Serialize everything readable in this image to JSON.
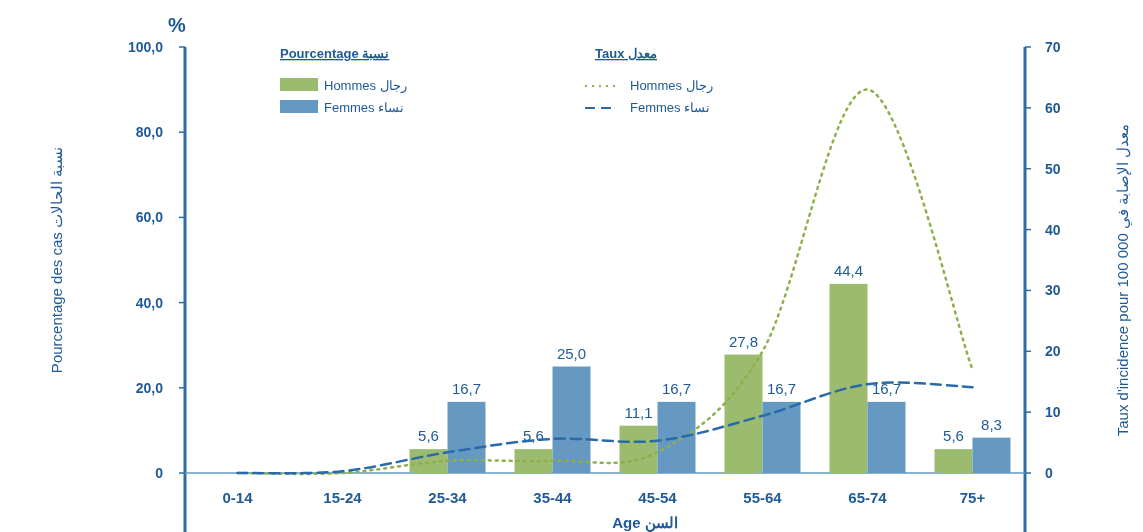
{
  "chart_data": {
    "type": "bar",
    "categories": [
      "0-14",
      "15-24",
      "25-34",
      "35-44",
      "45-54",
      "55-64",
      "65-74",
      "75+"
    ],
    "series": [
      {
        "name": "Hommes  رجال",
        "color": "#9bbb6e",
        "values": [
          0,
          0,
          5.6,
          5.6,
          11.1,
          27.8,
          44.4,
          5.6
        ],
        "value_labels": [
          null,
          null,
          "5,6",
          "5,6",
          "11,1",
          "27,8",
          "44,4",
          "5,6"
        ]
      },
      {
        "name": "Femmes  نساء",
        "color": "#6699c2",
        "values": [
          0,
          0,
          16.7,
          25.0,
          16.7,
          16.7,
          16.7,
          8.3
        ],
        "value_labels": [
          null,
          null,
          "16,7",
          "25,0",
          "16,7",
          "16,7",
          "16,7",
          "8,3"
        ]
      },
      {
        "name": "Hommes  رجال",
        "type": "line",
        "axis": "y2",
        "color": "#8db04a",
        "line_style": "dotted",
        "values": [
          0,
          0,
          2.0,
          2.0,
          3.4,
          20,
          63,
          17
        ]
      },
      {
        "name": "Femmes  نساء",
        "type": "line",
        "axis": "y2",
        "color": "#2a6aa8",
        "line_style": "dashed",
        "values": [
          0,
          0.3,
          3.4,
          5.6,
          5.3,
          9.4,
          14.6,
          14.1
        ]
      }
    ],
    "xlabel": "Age  السن",
    "ylabel": "Pourcentage des cas  نسبة الحالات",
    "y2label": "Taux d'incidence pour 100 000  معدل الإصابة في",
    "ylim": [
      0,
      100
    ],
    "yticks": [
      {
        "value": 0,
        "label": "0"
      },
      {
        "value": 20,
        "label": "20,0"
      },
      {
        "value": 40,
        "label": "40,0"
      },
      {
        "value": 60,
        "label": "60,0"
      },
      {
        "value": 80,
        "label": "80,0"
      },
      {
        "value": 100,
        "label": "100,0"
      }
    ],
    "y2lim": [
      0,
      70
    ],
    "y2ticks": [
      0,
      10,
      20,
      30,
      40,
      50,
      60,
      70
    ],
    "legend": "top",
    "annotations": [
      "%",
      "Pourcentage  نسبة",
      "Taux  معدل"
    ]
  }
}
